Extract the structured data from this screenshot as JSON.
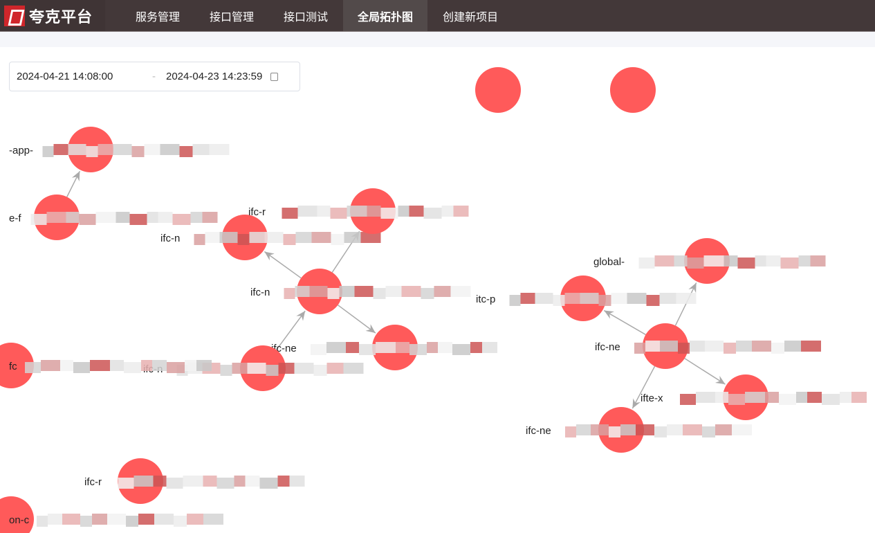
{
  "header": {
    "brand": "夸克平台",
    "nav": [
      {
        "label": "服务管理"
      },
      {
        "label": "接口管理"
      },
      {
        "label": "接口测试"
      },
      {
        "label": "全局拓扑图",
        "active": true
      },
      {
        "label": "创建新项目"
      }
    ]
  },
  "date_range": {
    "start": "2024-04-21 14:08:00",
    "separator": "-",
    "end": "2024-04-23 14:23:59",
    "icon": "calendar-icon"
  },
  "graph": {
    "node_color": "#ff5a5a",
    "edge_color": "#aaaaaa",
    "nodes": [
      {
        "id": "n1",
        "label": ""
      },
      {
        "id": "n2",
        "label": ""
      },
      {
        "id": "n3",
        "label": "-app-"
      },
      {
        "id": "n4",
        "label": "e-f"
      },
      {
        "id": "n5",
        "label": "ifc-n"
      },
      {
        "id": "n6",
        "label": "ifc-r"
      },
      {
        "id": "n7",
        "label": "ifc-n"
      },
      {
        "id": "n8",
        "label": "ifc-ne"
      },
      {
        "id": "n9",
        "label": "ifc-n"
      },
      {
        "id": "n10",
        "label": "fc"
      },
      {
        "id": "n11",
        "label": "itc-p"
      },
      {
        "id": "n12",
        "label": "global-"
      },
      {
        "id": "n13",
        "label": "ifc-ne"
      },
      {
        "id": "n14",
        "label": "ifte-x"
      },
      {
        "id": "n15",
        "label": "ifc-ne"
      },
      {
        "id": "n16",
        "label": "ifc-r"
      },
      {
        "id": "n17",
        "label": "on-c"
      }
    ],
    "edges": [
      [
        "n4",
        "n3"
      ],
      [
        "n7",
        "n5"
      ],
      [
        "n7",
        "n6"
      ],
      [
        "n7",
        "n8"
      ],
      [
        "n9",
        "n7"
      ],
      [
        "n13",
        "n11"
      ],
      [
        "n13",
        "n12"
      ],
      [
        "n13",
        "n14"
      ],
      [
        "n13",
        "n15"
      ]
    ]
  }
}
